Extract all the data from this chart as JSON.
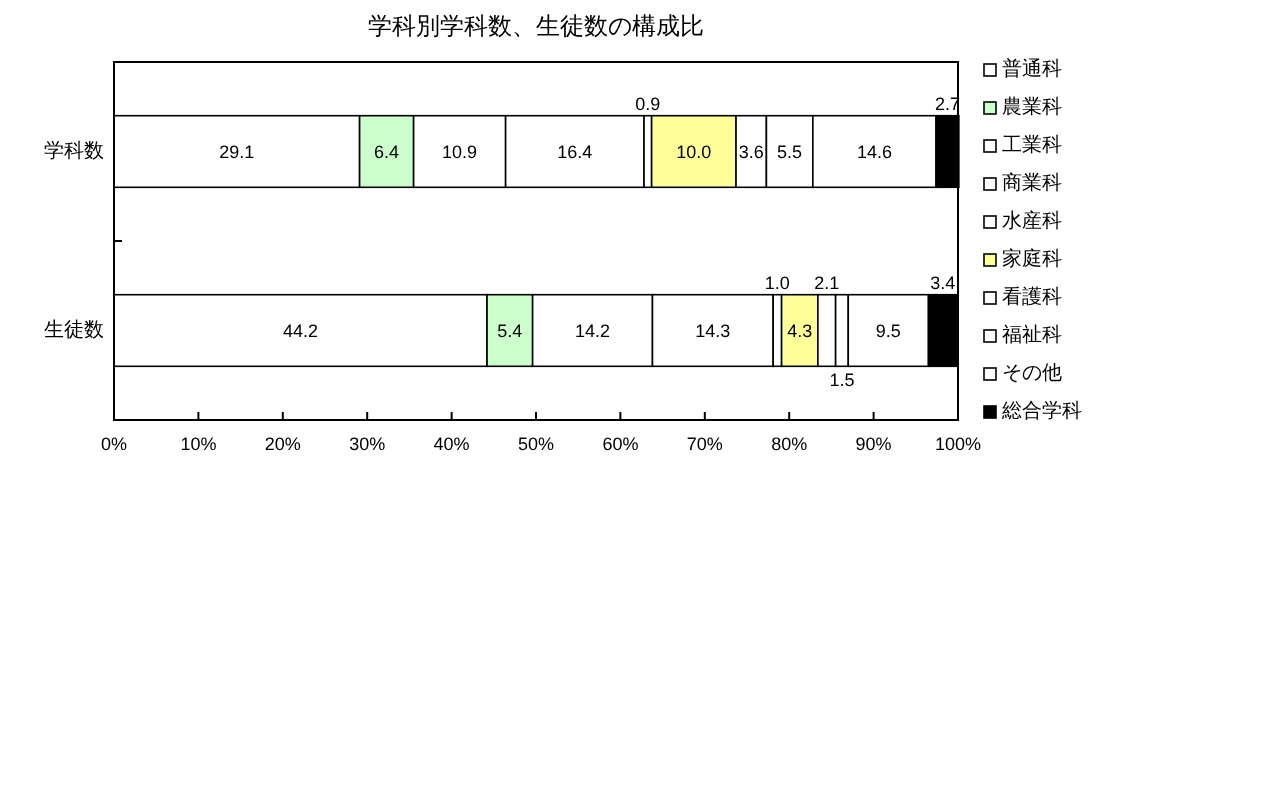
{
  "chart_data": {
    "type": "bar",
    "title": "学科別学科数、生徒数の構成比",
    "orientation": "horizontal",
    "stacked": true,
    "categories": [
      "学科数",
      "生徒数"
    ],
    "series": [
      {
        "name": "普通科",
        "color": "#ffffff",
        "values": [
          29.1,
          44.2
        ],
        "value_labels": [
          "29.1",
          "44.2"
        ]
      },
      {
        "name": "農業科",
        "color": "#ccffcc",
        "values": [
          6.4,
          5.4
        ],
        "value_labels": [
          "6.4",
          "5.4"
        ]
      },
      {
        "name": "工業科",
        "color": "#ffffff",
        "values": [
          10.9,
          14.2
        ],
        "value_labels": [
          "10.9",
          "14.2"
        ]
      },
      {
        "name": "商業科",
        "color": "#ffffff",
        "values": [
          16.4,
          14.3
        ],
        "value_labels": [
          "16.4",
          "14.3"
        ]
      },
      {
        "name": "水産科",
        "color": "#ffffff",
        "values": [
          0.9,
          1.0
        ],
        "value_labels": [
          "0.9",
          "1.0"
        ]
      },
      {
        "name": "家庭科",
        "color": "#ffff99",
        "values": [
          10.0,
          4.3
        ],
        "value_labels": [
          "10.0",
          "4.3"
        ]
      },
      {
        "name": "看護科",
        "color": "#ffffff",
        "values": [
          3.6,
          2.1
        ],
        "value_labels": [
          "3.6",
          "2.1"
        ]
      },
      {
        "name": "福祉科",
        "color": "#ffffff",
        "values": [
          5.5,
          1.5
        ],
        "value_labels": [
          "5.5",
          "1.5"
        ]
      },
      {
        "name": "その他",
        "color": "#ffffff",
        "values": [
          14.6,
          9.5
        ],
        "value_labels": [
          "14.6",
          "9.5"
        ]
      },
      {
        "name": "総合学科",
        "color": "#000000",
        "values": [
          2.7,
          3.4
        ],
        "value_labels": [
          "2.7",
          "3.4"
        ]
      }
    ],
    "xlim": [
      0,
      100
    ],
    "xticks": [
      {
        "value": 0,
        "label": "0%"
      },
      {
        "value": 10,
        "label": "10%"
      },
      {
        "value": 20,
        "label": "20%"
      },
      {
        "value": 30,
        "label": "30%"
      },
      {
        "value": 40,
        "label": "40%"
      },
      {
        "value": 50,
        "label": "50%"
      },
      {
        "value": 60,
        "label": "60%"
      },
      {
        "value": 70,
        "label": "70%"
      },
      {
        "value": 80,
        "label": "80%"
      },
      {
        "value": 90,
        "label": "90%"
      },
      {
        "value": 100,
        "label": "100%"
      }
    ],
    "legend": "right"
  }
}
